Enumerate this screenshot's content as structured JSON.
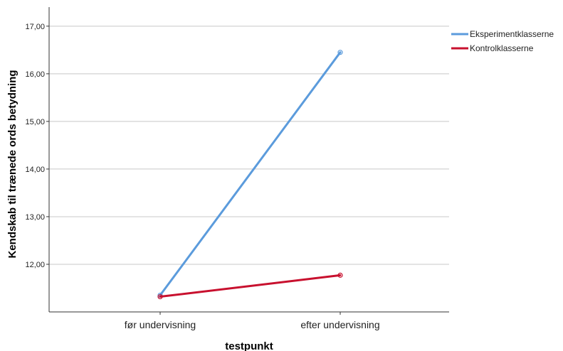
{
  "chart_data": {
    "type": "line",
    "title": "",
    "xlabel": "testpunkt",
    "ylabel": "Kendskab til trænede ords betydning",
    "categories": [
      "før undervisning",
      "efter undervisning"
    ],
    "y_ticks": [
      "12,00",
      "13,00",
      "14,00",
      "15,00",
      "16,00",
      "17,00"
    ],
    "ylim": [
      11.0,
      17.4
    ],
    "grid": true,
    "legend_position": "top-right",
    "series": [
      {
        "name": "Eksperimentklasserne",
        "values": [
          11.35,
          16.45
        ],
        "color": "#5b9bdc"
      },
      {
        "name": "Kontrolklasserne",
        "values": [
          11.32,
          11.77
        ],
        "color": "#c8102e"
      }
    ]
  }
}
